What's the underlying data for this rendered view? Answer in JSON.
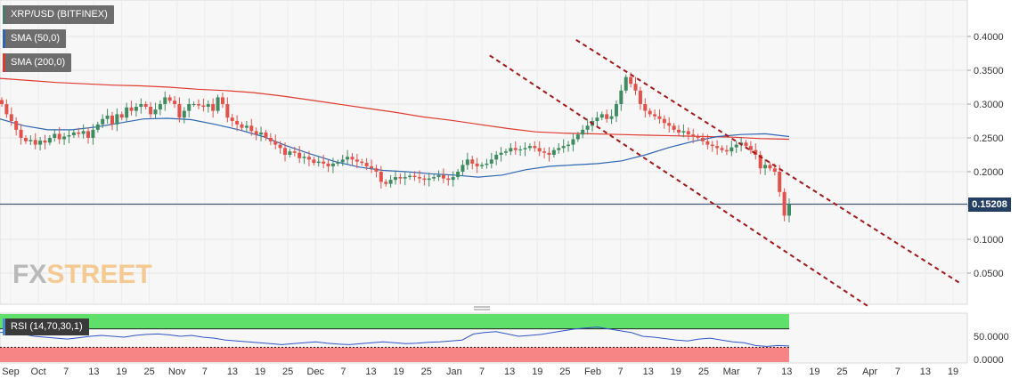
{
  "chart_data": {
    "type": "candlestick",
    "symbol_label": "XRP/USD (BITFINEX)",
    "indicators": [
      {
        "name": "SMA (50,0)",
        "color": "#2f66b3"
      },
      {
        "name": "SMA (200,0)",
        "color": "#e03a2f"
      }
    ],
    "current_price": "0.15208",
    "y_axis": {
      "ticks": [
        "0.4000",
        "0.3500",
        "0.3000",
        "0.2500",
        "0.2000",
        "0.1500",
        "0.1000",
        "0.0500"
      ],
      "range": [
        0.0,
        0.45
      ]
    },
    "x_axis": {
      "ticks": [
        "Sep",
        "Oct",
        "7",
        "13",
        "19",
        "25",
        "Nov",
        "7",
        "13",
        "19",
        "25",
        "Dec",
        "7",
        "13",
        "19",
        "25",
        "Jan",
        "7",
        "13",
        "19",
        "25",
        "Feb",
        "7",
        "13",
        "19",
        "25",
        "Mar",
        "7",
        "13",
        "19",
        "25",
        "Apr",
        "7",
        "13",
        "19"
      ]
    },
    "candle_closes": [
      0.3,
      0.285,
      0.275,
      0.262,
      0.25,
      0.245,
      0.247,
      0.24,
      0.246,
      0.243,
      0.25,
      0.256,
      0.248,
      0.252,
      0.254,
      0.258,
      0.256,
      0.26,
      0.25,
      0.262,
      0.27,
      0.278,
      0.283,
      0.27,
      0.285,
      0.28,
      0.295,
      0.29,
      0.296,
      0.3,
      0.296,
      0.285,
      0.292,
      0.3,
      0.31,
      0.305,
      0.3,
      0.28,
      0.29,
      0.3,
      0.3,
      0.298,
      0.296,
      0.3,
      0.29,
      0.31,
      0.3,
      0.28,
      0.275,
      0.27,
      0.265,
      0.268,
      0.26,
      0.255,
      0.258,
      0.25,
      0.245,
      0.24,
      0.235,
      0.225,
      0.23,
      0.228,
      0.22,
      0.222,
      0.218,
      0.213,
      0.215,
      0.212,
      0.208,
      0.212,
      0.214,
      0.218,
      0.222,
      0.218,
      0.215,
      0.213,
      0.208,
      0.205,
      0.2,
      0.185,
      0.182,
      0.188,
      0.192,
      0.19,
      0.192,
      0.194,
      0.192,
      0.19,
      0.188,
      0.19,
      0.192,
      0.195,
      0.19,
      0.188,
      0.192,
      0.2,
      0.21,
      0.218,
      0.212,
      0.208,
      0.21,
      0.212,
      0.218,
      0.225,
      0.228,
      0.23,
      0.235,
      0.232,
      0.233,
      0.235,
      0.238,
      0.235,
      0.23,
      0.228,
      0.225,
      0.232,
      0.235,
      0.238,
      0.24,
      0.248,
      0.255,
      0.262,
      0.268,
      0.275,
      0.28,
      0.285,
      0.278,
      0.282,
      0.3,
      0.32,
      0.34,
      0.33,
      0.32,
      0.3,
      0.29,
      0.285,
      0.282,
      0.278,
      0.272,
      0.268,
      0.262,
      0.258,
      0.26,
      0.255,
      0.252,
      0.25,
      0.245,
      0.24,
      0.238,
      0.235,
      0.232,
      0.23,
      0.236,
      0.24,
      0.243,
      0.238,
      0.232,
      0.225,
      0.205,
      0.21,
      0.205,
      0.2,
      0.17,
      0.135,
      0.152
    ],
    "sma50": [
      0.278,
      0.268,
      0.262,
      0.262,
      0.266,
      0.272,
      0.278,
      0.279,
      0.277,
      0.27,
      0.262,
      0.252,
      0.238,
      0.226,
      0.215,
      0.207,
      0.202,
      0.2,
      0.197,
      0.195,
      0.192,
      0.195,
      0.203,
      0.208,
      0.21,
      0.212,
      0.216,
      0.225,
      0.236,
      0.245,
      0.252,
      0.255,
      0.256,
      0.252
    ],
    "sma200": [
      0.338,
      0.335,
      0.332,
      0.33,
      0.328,
      0.327,
      0.325,
      0.322,
      0.32,
      0.317,
      0.312,
      0.306,
      0.3,
      0.294,
      0.288,
      0.281,
      0.276,
      0.27,
      0.264,
      0.259,
      0.257,
      0.256,
      0.255,
      0.254,
      0.253,
      0.252,
      0.251,
      0.249,
      0.248
    ],
    "trend_channel": {
      "upper": [
        [
          0.6,
          0.395
        ],
        [
          1.0,
          0.035
        ]
      ],
      "lower": [
        [
          0.51,
          0.372
        ],
        [
          0.905,
          0.0
        ]
      ]
    },
    "rsi": {
      "label": "RSI (14,70,30,1)",
      "levels": {
        "overbought": 70,
        "oversold": 30
      },
      "y_ticks": [
        "50.0000",
        "0.0000"
      ],
      "values": [
        58,
        60,
        55,
        50,
        48,
        46,
        44,
        47,
        50,
        52,
        50,
        48,
        52,
        54,
        55,
        53,
        50,
        52,
        48,
        46,
        42,
        40,
        38,
        36,
        34,
        32,
        34,
        36,
        38,
        35,
        33,
        32,
        34,
        36,
        38,
        36,
        34,
        35,
        37,
        38,
        40,
        42,
        55,
        58,
        60,
        55,
        50,
        52,
        54,
        58,
        62,
        66,
        68,
        70,
        66,
        62,
        58,
        50,
        48,
        45,
        42,
        40,
        44,
        46,
        42,
        38,
        36,
        30,
        28,
        30,
        29
      ]
    }
  }
}
